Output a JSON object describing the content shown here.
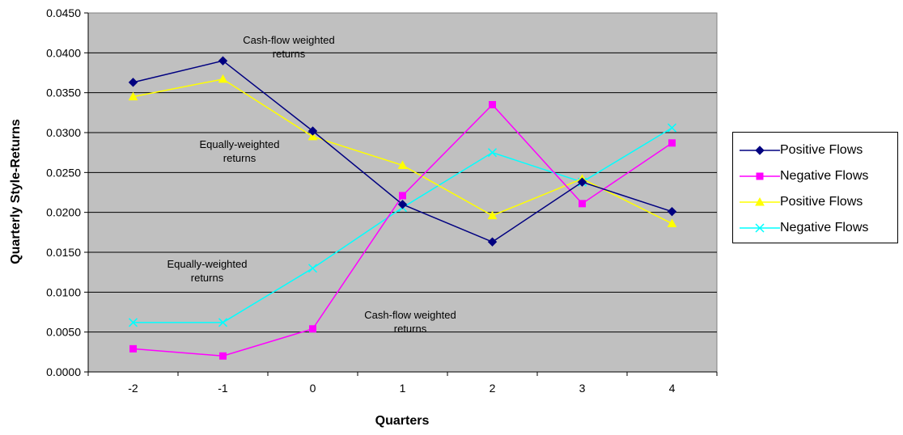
{
  "chart_data": {
    "type": "line",
    "xlabel": "Quarters",
    "ylabel": "Quarterly Style-Returns",
    "categories": [
      "-2",
      "-1",
      "0",
      "1",
      "2",
      "3",
      "4"
    ],
    "ylim": [
      0,
      0.045
    ],
    "yticks": [
      "0.0000",
      "0.0050",
      "0.0100",
      "0.0150",
      "0.0200",
      "0.0250",
      "0.0300",
      "0.0350",
      "0.0400",
      "0.0450"
    ],
    "grid": true,
    "plot_background": "#C0C0C0",
    "legend_position": "right",
    "series": [
      {
        "name": "Positive Flows",
        "color": "#000080",
        "marker": "diamond",
        "values": [
          0.0363,
          0.039,
          0.0302,
          0.021,
          0.0163,
          0.0238,
          0.0201
        ]
      },
      {
        "name": "Negative Flows",
        "color": "#FF00FF",
        "marker": "square",
        "values": [
          0.0029,
          0.002,
          0.0054,
          0.0221,
          0.0335,
          0.0211,
          0.0287
        ]
      },
      {
        "name": "Positive Flows",
        "color": "#FFFF00",
        "marker": "triangle",
        "values": [
          0.0345,
          0.0367,
          0.0295,
          0.0259,
          0.0196,
          0.0242,
          0.0186
        ]
      },
      {
        "name": "Negative Flows",
        "color": "#00FFFF",
        "marker": "x",
        "values": [
          0.0062,
          0.0062,
          0.013,
          0.0206,
          0.0275,
          0.0238,
          0.0306
        ]
      }
    ],
    "annotations": [
      {
        "lines": [
          "Cash-flow weighted",
          "returns"
        ]
      },
      {
        "lines": [
          "Equally-weighted",
          "returns"
        ]
      },
      {
        "lines": [
          "Equally-weighted",
          "returns"
        ]
      },
      {
        "lines": [
          "Cash-flow weighted",
          "returns"
        ]
      }
    ]
  }
}
